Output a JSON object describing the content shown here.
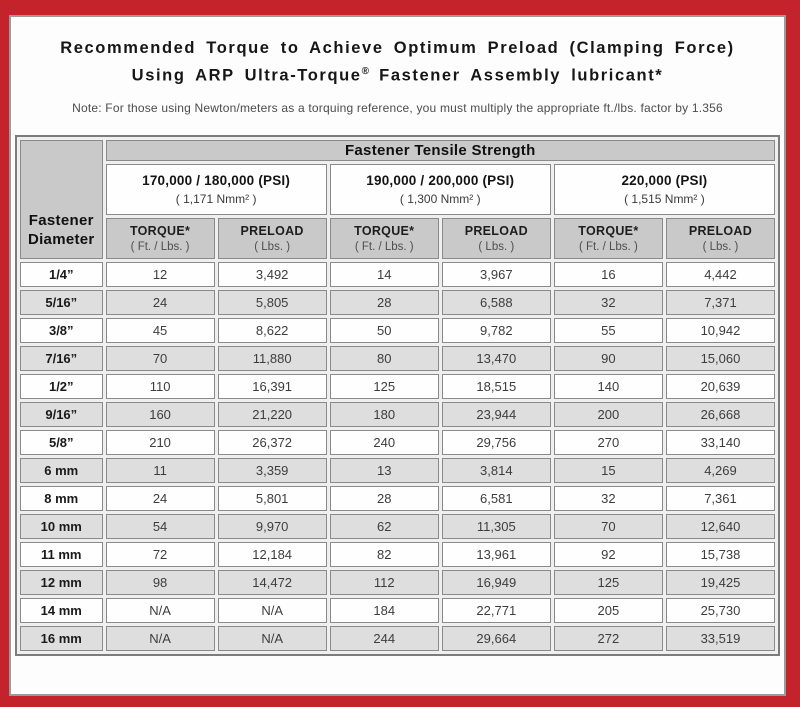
{
  "header": {
    "title_line1": "Recommended Torque to Achieve Optimum Preload (Clamping Force)",
    "title_line2_pre": "Using ARP Ultra-Torque",
    "title_line2_sup": "®",
    "title_line2_post": " Fastener Assembly lubricant*",
    "note": "Note: For those using Newton/meters as a torquing reference, you must multiply the appropriate ft./lbs. factor by 1.356"
  },
  "colors": {
    "frame_red": "#c4232b",
    "header_gray": "#c9c9c9",
    "alt_row_gray": "#dedede",
    "cell_border_gray": "#8a8a8a"
  },
  "table": {
    "tensile_strength_header": "Fastener Tensile Strength",
    "diameter_header": {
      "line1": "Fastener",
      "line2": "Diameter"
    },
    "strength_groups": [
      {
        "psi": "170,000 / 180,000 (PSI)",
        "nmm": "( 1,171 Nmm² )"
      },
      {
        "psi": "190,000 / 200,000 (PSI)",
        "nmm": "( 1,300 Nmm² )"
      },
      {
        "psi": "220,000 (PSI)",
        "nmm": "( 1,515 Nmm² )"
      }
    ],
    "column_headers": [
      {
        "label": "TORQUE*",
        "sub": "( Ft. / Lbs. )"
      },
      {
        "label": "PRELOAD",
        "sub": "( Lbs. )"
      },
      {
        "label": "TORQUE*",
        "sub": "( Ft. / Lbs. )"
      },
      {
        "label": "PRELOAD",
        "sub": "( Lbs. )"
      },
      {
        "label": "TORQUE*",
        "sub": "( Ft. / Lbs. )"
      },
      {
        "label": "PRELOAD",
        "sub": "( Lbs. )"
      }
    ],
    "rows": [
      {
        "diameter": "1/4”",
        "values": [
          "12",
          "3,492",
          "14",
          "3,967",
          "16",
          "4,442"
        ]
      },
      {
        "diameter": "5/16”",
        "values": [
          "24",
          "5,805",
          "28",
          "6,588",
          "32",
          "7,371"
        ]
      },
      {
        "diameter": "3/8”",
        "values": [
          "45",
          "8,622",
          "50",
          "9,782",
          "55",
          "10,942"
        ]
      },
      {
        "diameter": "7/16”",
        "values": [
          "70",
          "11,880",
          "80",
          "13,470",
          "90",
          "15,060"
        ]
      },
      {
        "diameter": "1/2”",
        "values": [
          "110",
          "16,391",
          "125",
          "18,515",
          "140",
          "20,639"
        ]
      },
      {
        "diameter": "9/16”",
        "values": [
          "160",
          "21,220",
          "180",
          "23,944",
          "200",
          "26,668"
        ]
      },
      {
        "diameter": "5/8”",
        "values": [
          "210",
          "26,372",
          "240",
          "29,756",
          "270",
          "33,140"
        ]
      },
      {
        "diameter": "6 mm",
        "values": [
          "11",
          "3,359",
          "13",
          "3,814",
          "15",
          "4,269"
        ]
      },
      {
        "diameter": "8 mm",
        "values": [
          "24",
          "5,801",
          "28",
          "6,581",
          "32",
          "7,361"
        ]
      },
      {
        "diameter": "10 mm",
        "values": [
          "54",
          "9,970",
          "62",
          "11,305",
          "70",
          "12,640"
        ]
      },
      {
        "diameter": "11 mm",
        "values": [
          "72",
          "12,184",
          "82",
          "13,961",
          "92",
          "15,738"
        ]
      },
      {
        "diameter": "12 mm",
        "values": [
          "98",
          "14,472",
          "112",
          "16,949",
          "125",
          "19,425"
        ]
      },
      {
        "diameter": "14 mm",
        "values": [
          "N/A",
          "N/A",
          "184",
          "22,771",
          "205",
          "25,730"
        ]
      },
      {
        "diameter": "16 mm",
        "values": [
          "N/A",
          "N/A",
          "244",
          "29,664",
          "272",
          "33,519"
        ]
      }
    ]
  }
}
